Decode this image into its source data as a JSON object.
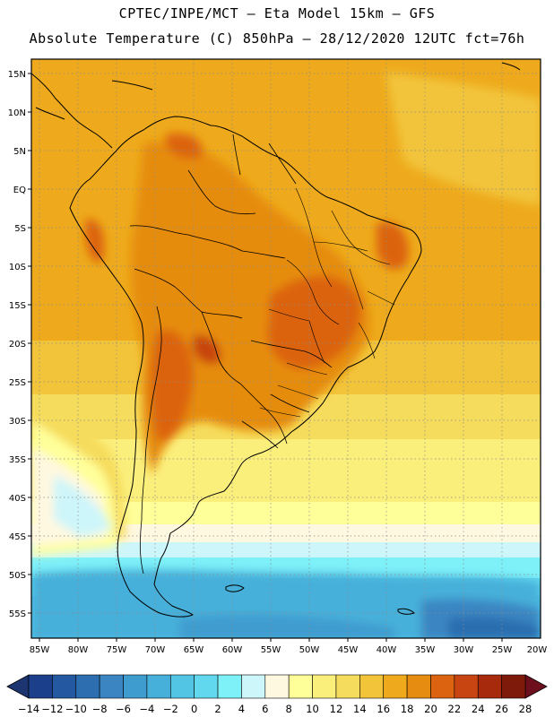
{
  "header": {
    "line1": "CPTEC/INPE/MCT –  Eta Model 15km – GFS",
    "line2": "Absolute Temperature (C) 850hPa – 28/12/2020 12UTC fct=76h"
  },
  "map": {
    "lat_labels": [
      "15N",
      "10N",
      "5N",
      "EQ",
      "5S",
      "10S",
      "15S",
      "20S",
      "25S",
      "30S",
      "35S",
      "40S",
      "45S",
      "50S",
      "55S"
    ],
    "lon_labels": [
      "85W",
      "80W",
      "75W",
      "70W",
      "65W",
      "60W",
      "55W",
      "50W",
      "45W",
      "40W",
      "35W",
      "30W",
      "25W",
      "20W"
    ]
  },
  "colorbar": {
    "labels": [
      "-14",
      "-12",
      "-10",
      "-8",
      "-6",
      "-4",
      "-2",
      "0",
      "2",
      "4",
      "6",
      "8",
      "10",
      "12",
      "14",
      "16",
      "18",
      "20",
      "22",
      "24",
      "26",
      "28"
    ],
    "colors": [
      "#1c3f8c",
      "#2458a0",
      "#2c6eb0",
      "#3b86c2",
      "#3f9ccf",
      "#46b0da",
      "#52c4e4",
      "#62d8ee",
      "#7ef0f8",
      "#cdf6fa",
      "#fff8e0",
      "#ffff9a",
      "#fbef7c",
      "#f6dc5c",
      "#f2c43a",
      "#eeaa1c",
      "#e68c10",
      "#dc6410",
      "#c84410",
      "#a82a0c",
      "#7e1a0a"
    ],
    "under_color": "#1c3470",
    "over_color": "#6e0f1e"
  }
}
